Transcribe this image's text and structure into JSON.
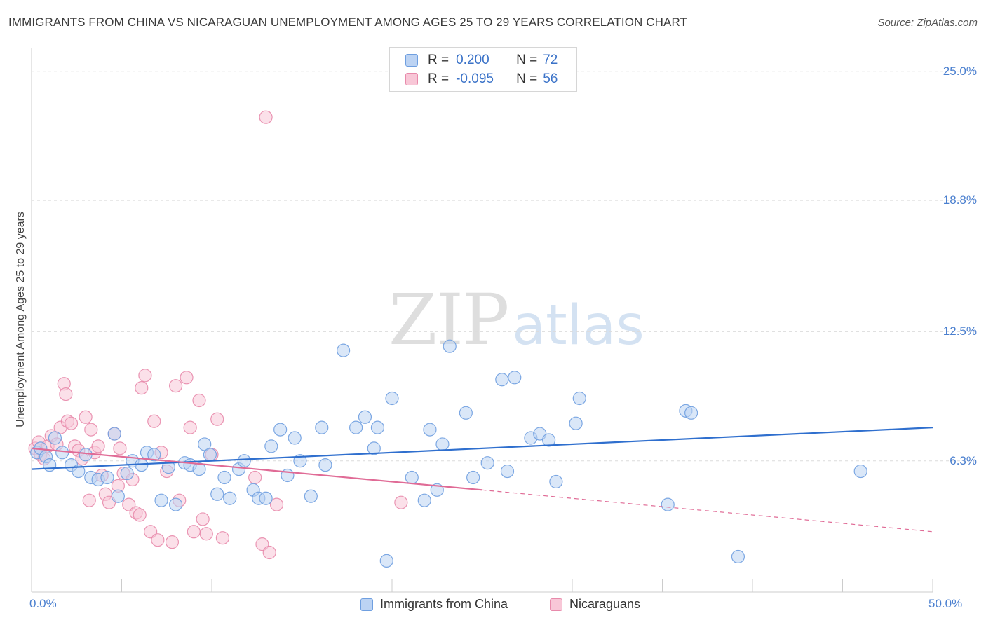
{
  "header": {
    "title": "IMMIGRANTS FROM CHINA VS NICARAGUAN UNEMPLOYMENT AMONG AGES 25 TO 29 YEARS CORRELATION CHART",
    "source": "Source: ZipAtlas.com"
  },
  "watermark": {
    "zip": "ZIP",
    "atlas": "atlas"
  },
  "legend": {
    "rows": [
      {
        "r_label": "R =",
        "r_value": "0.200",
        "n_label": "N =",
        "n_value": "72",
        "color": "#6f9fe0",
        "fill": "#bcd3f3"
      },
      {
        "r_label": "R =",
        "r_value": "-0.095",
        "n_label": "N =",
        "n_value": "56",
        "color": "#e88aab",
        "fill": "#f8c7d7"
      }
    ]
  },
  "bottom_legend": {
    "items": [
      {
        "label": "Immigrants from China",
        "color": "#6f9fe0",
        "fill": "#bcd3f3"
      },
      {
        "label": "Nicaraguans",
        "color": "#e88aab",
        "fill": "#f8c7d7"
      }
    ]
  },
  "chart_data": {
    "type": "scatter",
    "title": "IMMIGRANTS FROM CHINA VS NICARAGUAN UNEMPLOYMENT AMONG AGES 25 TO 29 YEARS CORRELATION CHART",
    "xlabel": "",
    "ylabel": "Unemployment Among Ages 25 to 29 years",
    "xlim": [
      0,
      50
    ],
    "ylim": [
      0,
      25.8
    ],
    "x_tick_labels": [
      "0.0%",
      "50.0%"
    ],
    "y_ticks": [
      6.3,
      12.5,
      18.8,
      25.0
    ],
    "y_tick_labels": [
      "6.3%",
      "12.5%",
      "18.8%",
      "25.0%"
    ],
    "grid": true,
    "legend_position": "top-center",
    "series": [
      {
        "name": "Immigrants from China",
        "color": "#6f9fe0",
        "fill": "#bcd3f3",
        "trend": {
          "x": [
            0,
            50
          ],
          "y": [
            5.9,
            7.9
          ],
          "dashed_from": null
        },
        "points": [
          [
            0.3,
            6.7
          ],
          [
            0.5,
            6.9
          ],
          [
            0.8,
            6.5
          ],
          [
            1.0,
            6.1
          ],
          [
            1.3,
            7.4
          ],
          [
            1.7,
            6.7
          ],
          [
            2.2,
            6.1
          ],
          [
            2.6,
            5.8
          ],
          [
            3.0,
            6.6
          ],
          [
            3.3,
            5.5
          ],
          [
            3.7,
            5.4
          ],
          [
            4.2,
            5.5
          ],
          [
            4.6,
            7.6
          ],
          [
            4.8,
            4.6
          ],
          [
            5.3,
            5.7
          ],
          [
            5.6,
            6.3
          ],
          [
            6.1,
            6.1
          ],
          [
            6.4,
            6.7
          ],
          [
            6.8,
            6.6
          ],
          [
            7.2,
            4.4
          ],
          [
            7.6,
            6.0
          ],
          [
            8.0,
            4.2
          ],
          [
            8.5,
            6.2
          ],
          [
            8.8,
            6.1
          ],
          [
            9.3,
            5.9
          ],
          [
            9.6,
            7.1
          ],
          [
            9.9,
            6.6
          ],
          [
            10.3,
            4.7
          ],
          [
            10.7,
            5.5
          ],
          [
            11.0,
            4.5
          ],
          [
            11.5,
            5.9
          ],
          [
            11.8,
            6.3
          ],
          [
            12.3,
            4.9
          ],
          [
            12.6,
            4.5
          ],
          [
            13.0,
            4.5
          ],
          [
            13.3,
            7.0
          ],
          [
            13.8,
            7.8
          ],
          [
            14.2,
            5.6
          ],
          [
            14.6,
            7.4
          ],
          [
            14.9,
            6.3
          ],
          [
            15.5,
            4.6
          ],
          [
            16.1,
            7.9
          ],
          [
            16.3,
            6.1
          ],
          [
            17.3,
            11.6
          ],
          [
            18.0,
            7.9
          ],
          [
            18.5,
            8.4
          ],
          [
            19.0,
            6.9
          ],
          [
            19.2,
            7.9
          ],
          [
            19.7,
            1.5
          ],
          [
            20.0,
            9.3
          ],
          [
            21.1,
            5.5
          ],
          [
            21.8,
            4.4
          ],
          [
            22.1,
            7.8
          ],
          [
            22.5,
            4.9
          ],
          [
            22.8,
            7.1
          ],
          [
            23.2,
            11.8
          ],
          [
            24.1,
            8.6
          ],
          [
            24.5,
            5.5
          ],
          [
            25.3,
            6.2
          ],
          [
            26.1,
            10.2
          ],
          [
            26.4,
            5.8
          ],
          [
            26.8,
            10.3
          ],
          [
            27.7,
            7.4
          ],
          [
            28.2,
            7.6
          ],
          [
            28.7,
            7.3
          ],
          [
            29.1,
            5.3
          ],
          [
            30.2,
            8.1
          ],
          [
            30.4,
            9.3
          ],
          [
            35.3,
            4.2
          ],
          [
            36.3,
            8.7
          ],
          [
            36.6,
            8.6
          ],
          [
            39.2,
            1.7
          ],
          [
            46.0,
            5.8
          ]
        ]
      },
      {
        "name": "Nicaraguans",
        "color": "#e88aab",
        "fill": "#f8c7d7",
        "trend": {
          "x": [
            0,
            50
          ],
          "y": [
            6.9,
            2.9
          ],
          "dashed_from": 25.0
        },
        "points": [
          [
            0.2,
            6.9
          ],
          [
            0.4,
            7.2
          ],
          [
            0.5,
            6.6
          ],
          [
            0.7,
            6.4
          ],
          [
            0.9,
            7.0
          ],
          [
            1.1,
            7.5
          ],
          [
            1.4,
            7.1
          ],
          [
            1.6,
            7.9
          ],
          [
            1.8,
            10.0
          ],
          [
            1.9,
            9.5
          ],
          [
            2.0,
            8.2
          ],
          [
            2.2,
            8.1
          ],
          [
            2.4,
            7.0
          ],
          [
            2.6,
            6.8
          ],
          [
            2.8,
            6.4
          ],
          [
            3.0,
            8.4
          ],
          [
            3.2,
            4.4
          ],
          [
            3.3,
            7.8
          ],
          [
            3.5,
            6.7
          ],
          [
            3.7,
            7.0
          ],
          [
            3.9,
            5.6
          ],
          [
            4.1,
            4.7
          ],
          [
            4.3,
            4.3
          ],
          [
            4.6,
            7.6
          ],
          [
            4.8,
            5.1
          ],
          [
            4.9,
            6.9
          ],
          [
            5.1,
            5.7
          ],
          [
            5.4,
            4.2
          ],
          [
            5.6,
            5.4
          ],
          [
            5.8,
            3.8
          ],
          [
            6.0,
            3.7
          ],
          [
            6.1,
            9.8
          ],
          [
            6.3,
            10.4
          ],
          [
            6.6,
            2.9
          ],
          [
            6.8,
            8.2
          ],
          [
            7.0,
            2.5
          ],
          [
            7.2,
            6.7
          ],
          [
            7.5,
            5.8
          ],
          [
            7.8,
            2.4
          ],
          [
            8.0,
            9.9
          ],
          [
            8.2,
            4.4
          ],
          [
            8.6,
            10.3
          ],
          [
            8.8,
            7.9
          ],
          [
            9.0,
            2.9
          ],
          [
            9.3,
            9.2
          ],
          [
            9.5,
            3.5
          ],
          [
            9.7,
            2.8
          ],
          [
            10.3,
            8.3
          ],
          [
            10.6,
            2.6
          ],
          [
            10.0,
            6.6
          ],
          [
            12.4,
            5.5
          ],
          [
            12.8,
            2.3
          ],
          [
            13.2,
            1.9
          ],
          [
            13.6,
            4.2
          ],
          [
            13.0,
            22.8
          ],
          [
            20.5,
            4.3
          ]
        ]
      }
    ]
  }
}
